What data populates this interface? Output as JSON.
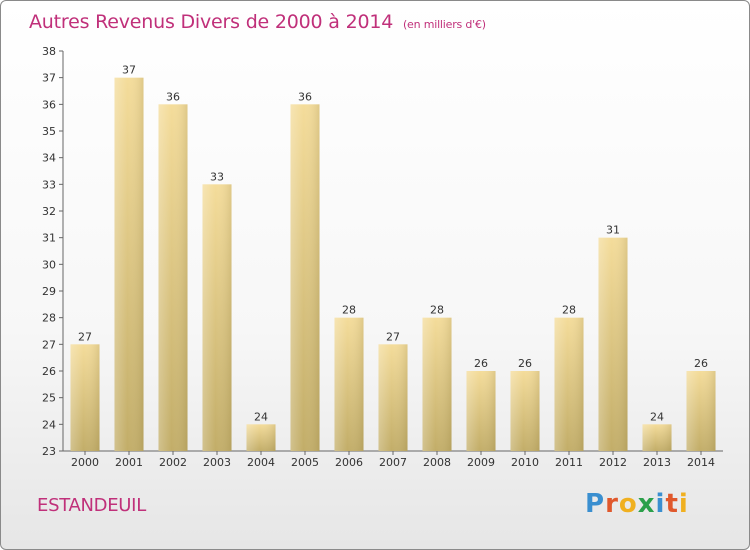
{
  "header": {
    "title": "Autres Revenus Divers de 2000 à 2014",
    "subtitle": "(en milliers d'€)"
  },
  "footer": {
    "place": "ESTANDEUIL",
    "logo": "Proxiti"
  },
  "colors": {
    "title": "#c0307a",
    "bar_top": "#f4dc9a",
    "bar_bottom": "#c2ad68"
  },
  "chart_data": {
    "type": "bar",
    "title": "Autres Revenus Divers de 2000 à 2014",
    "xlabel": "",
    "ylabel": "",
    "categories": [
      "2000",
      "2001",
      "2002",
      "2003",
      "2004",
      "2005",
      "2006",
      "2007",
      "2008",
      "2009",
      "2010",
      "2011",
      "2012",
      "2013",
      "2014"
    ],
    "values": [
      27,
      37,
      36,
      33,
      24,
      36,
      28,
      27,
      28,
      26,
      26,
      28,
      31,
      24,
      26
    ],
    "ylim": [
      23,
      38
    ],
    "yticks": [
      23,
      24,
      25,
      26,
      27,
      28,
      29,
      30,
      31,
      32,
      33,
      34,
      35,
      36,
      37,
      38
    ],
    "grid": false,
    "data_labels": true
  }
}
